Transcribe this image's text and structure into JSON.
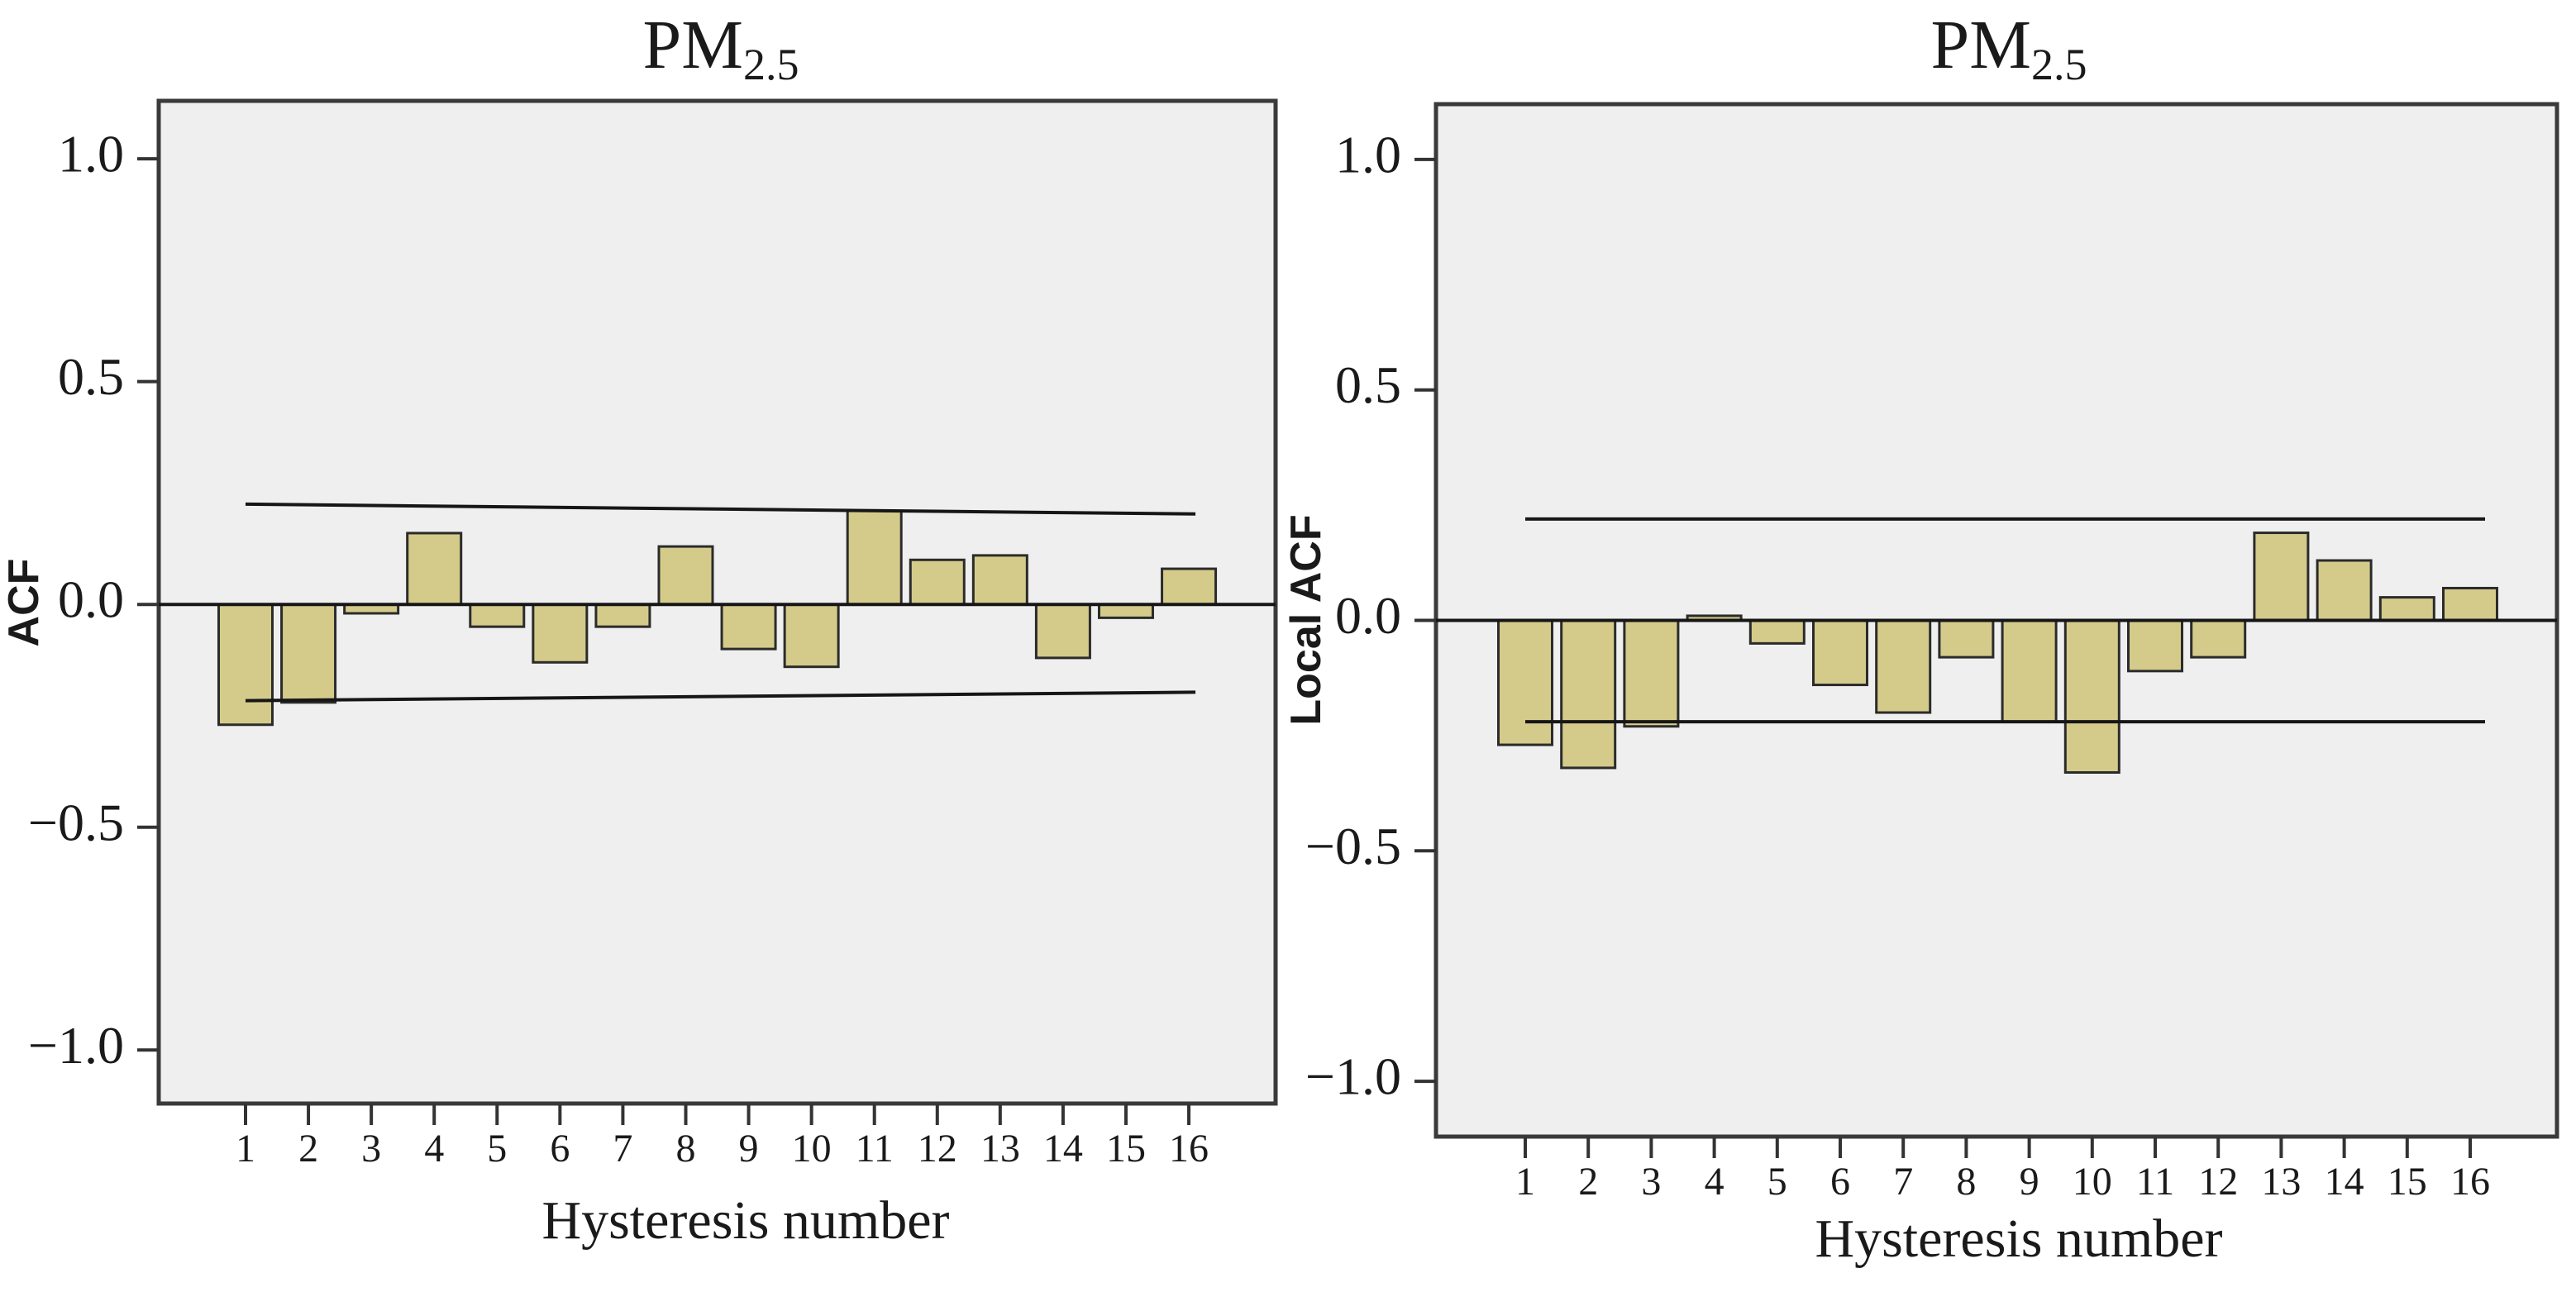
{
  "colors": {
    "page_bg": "#ffffff",
    "plot_bg": "#f0efef",
    "panel_border": "#3a3a3a",
    "bar_fill": "#d4cb8b",
    "bar_stroke": "#2b2b2b",
    "line": "#161616",
    "tick": "#333333",
    "text": "#1a1a1a"
  },
  "chart_data": [
    {
      "type": "bar",
      "title": "PM2.5",
      "title_main": "PM",
      "title_sub": "2.5",
      "ylabel": "ACF",
      "xlabel": "Hysteresis number",
      "categories": [
        "1",
        "2",
        "3",
        "4",
        "5",
        "6",
        "7",
        "8",
        "9",
        "10",
        "11",
        "12",
        "13",
        "14",
        "15",
        "16"
      ],
      "values": [
        -0.27,
        -0.22,
        -0.02,
        0.16,
        -0.05,
        -0.13,
        -0.05,
        0.13,
        -0.1,
        -0.14,
        0.21,
        0.1,
        0.11,
        -0.12,
        -0.03,
        0.08
      ],
      "conf_upper_start": 0.225,
      "conf_upper_end": 0.203,
      "conf_lower_start": -0.216,
      "conf_lower_end": -0.197,
      "yticks": [
        1.0,
        0.5,
        0.0,
        -0.5,
        -1.0
      ],
      "ytick_labels": [
        "1.0",
        "0.5",
        "0.0",
        "−0.5",
        "−1.0"
      ],
      "ylim": [
        -1.12,
        1.13
      ],
      "grid": false,
      "legend": "none"
    },
    {
      "type": "bar",
      "title": "PM2.5",
      "title_main": "PM",
      "title_sub": "2.5",
      "ylabel": "Local ACF",
      "xlabel": "Hysteresis number",
      "categories": [
        "1",
        "2",
        "3",
        "4",
        "5",
        "6",
        "7",
        "8",
        "9",
        "10",
        "11",
        "12",
        "13",
        "14",
        "15",
        "16"
      ],
      "values": [
        -0.27,
        -0.32,
        -0.23,
        0.01,
        -0.05,
        -0.14,
        -0.2,
        -0.08,
        -0.22,
        -0.33,
        -0.11,
        -0.08,
        0.19,
        0.13,
        0.05,
        0.07
      ],
      "conf_upper_start": 0.22,
      "conf_upper_end": 0.22,
      "conf_lower_start": -0.22,
      "conf_lower_end": -0.22,
      "yticks": [
        1.0,
        0.5,
        0.0,
        -0.5,
        -1.0
      ],
      "ytick_labels": [
        "1.0",
        "0.5",
        "0.0",
        "−0.5",
        "−1.0"
      ],
      "ylim": [
        -1.12,
        1.12
      ],
      "grid": false,
      "legend": "none"
    }
  ]
}
